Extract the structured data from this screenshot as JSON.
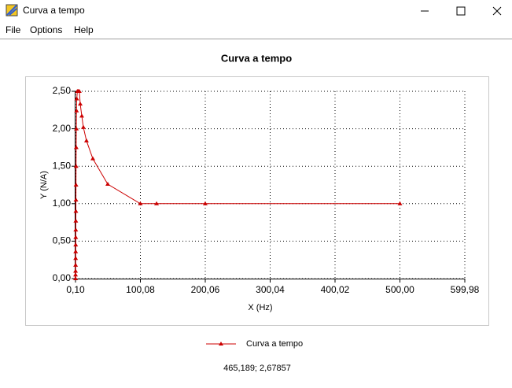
{
  "window": {
    "title": "Curva a tempo",
    "menu": [
      "File",
      "Options",
      "Help"
    ],
    "status": "465,189; 2,67857"
  },
  "chart_data": {
    "type": "line",
    "title": "Curva a tempo",
    "xlabel": "X (Hz)",
    "ylabel": "Y (N/A)",
    "x": [
      0.1,
      0.15,
      0.2,
      0.25,
      0.3,
      0.35,
      0.4,
      0.45,
      0.5,
      0.6,
      0.7,
      0.8,
      0.9,
      1.0,
      1.2,
      1.4,
      1.7,
      2.0,
      3.0,
      4.5,
      6.0,
      7.4,
      9.8,
      12.2,
      17,
      26.8,
      49.8,
      100,
      125,
      200,
      500
    ],
    "series": [
      {
        "name": "Curva a tempo",
        "color": "#cc0000",
        "values": [
          0.0,
          0.05,
          0.1,
          0.18,
          0.27,
          0.36,
          0.45,
          0.55,
          0.65,
          0.77,
          0.9,
          1.05,
          1.25,
          1.5,
          1.75,
          2.0,
          2.24,
          2.4,
          2.5,
          2.5,
          2.5,
          2.33,
          2.17,
          2.02,
          1.84,
          1.6,
          1.26,
          1.0,
          1.0,
          1.0,
          1.0
        ]
      }
    ],
    "xlim": [
      0.1,
      599.98
    ],
    "xticks": [
      {
        "value": 0.1,
        "label": "0,10"
      },
      {
        "value": 100.08,
        "label": "100,08"
      },
      {
        "value": 200.06,
        "label": "200,06"
      },
      {
        "value": 300.04,
        "label": "300,04"
      },
      {
        "value": 400.02,
        "label": "400,02"
      },
      {
        "value": 500.0,
        "label": "500,00"
      },
      {
        "value": 599.98,
        "label": "599,98"
      }
    ],
    "ylim": [
      0,
      2.5
    ],
    "yticks": [
      {
        "value": 0,
        "label": "0,00"
      },
      {
        "value": 0.5,
        "label": "0,50"
      },
      {
        "value": 1.0,
        "label": "1,00"
      },
      {
        "value": 1.5,
        "label": "1,50"
      },
      {
        "value": 2.0,
        "label": "2,00"
      },
      {
        "value": 2.5,
        "label": "2,50"
      }
    ],
    "grid": true
  }
}
